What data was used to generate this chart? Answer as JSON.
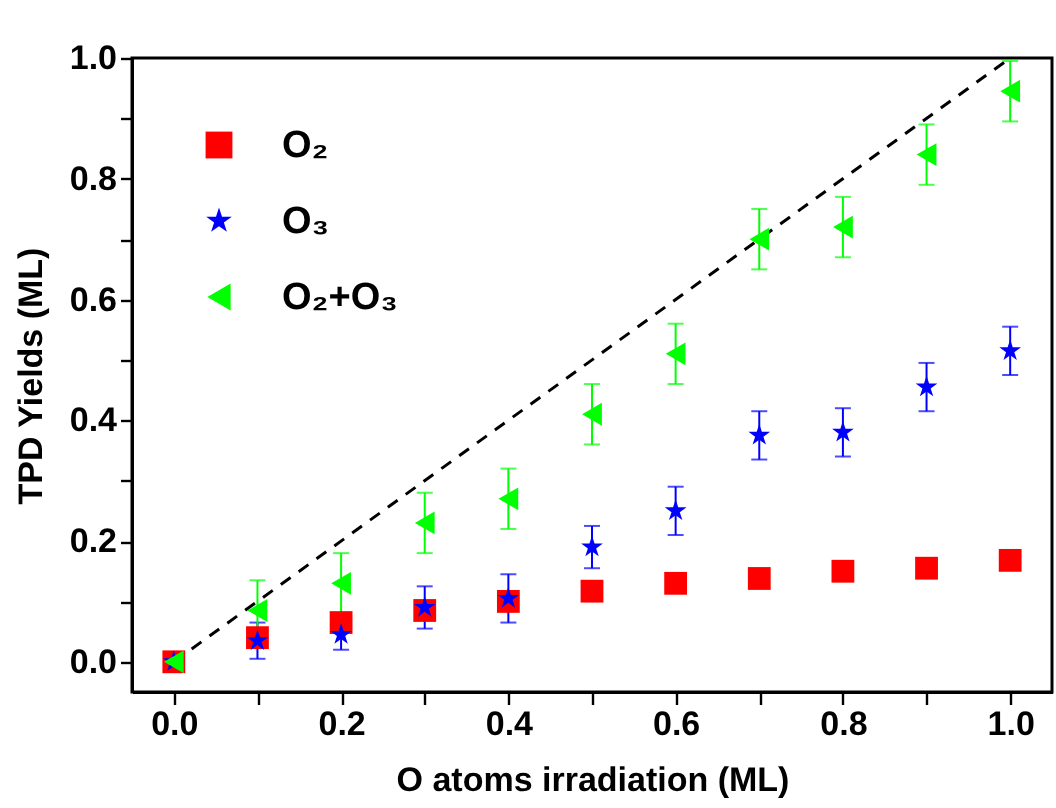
{
  "chart_data": {
    "type": "scatter",
    "xlabel": "O atoms irradiation (ML)",
    "ylabel": "TPD Yields (ML)",
    "x": [
      0,
      0.1,
      0.2,
      0.3,
      0.4,
      0.5,
      0.6,
      0.7,
      0.8,
      0.9,
      1.0
    ],
    "series": [
      {
        "name": "O₂",
        "color": "#ff0000",
        "marker": "square",
        "values": [
          0,
          0.04,
          0.065,
          0.085,
          0.1,
          0.117,
          0.13,
          0.138,
          0.15,
          0.155,
          0.168
        ]
      },
      {
        "name": "O₃",
        "color": "#0000ff",
        "marker": "star",
        "values": [
          0,
          0.035,
          0.045,
          0.09,
          0.105,
          0.19,
          0.25,
          0.375,
          0.38,
          0.455,
          0.515
        ],
        "errors": [
          null,
          0.03,
          0.025,
          0.035,
          0.04,
          0.035,
          0.04,
          0.04,
          0.04,
          0.04,
          0.04
        ]
      },
      {
        "name": "O₂+O₃",
        "color": "#00ff00",
        "marker": "triangle",
        "values": [
          0,
          0.085,
          0.13,
          0.23,
          0.27,
          0.41,
          0.51,
          0.7,
          0.72,
          0.84,
          0.945
        ],
        "errors": [
          null,
          0.05,
          0.05,
          0.05,
          0.05,
          0.05,
          0.05,
          0.05,
          0.05,
          0.05,
          0.05
        ]
      },
      {
        "type": "line",
        "color": "#000000",
        "line_style": "dashed",
        "marker": "none",
        "x": [
          0,
          1.0
        ],
        "values": [
          0,
          1.0
        ]
      }
    ],
    "xlim": [
      -0.05,
      1.05
    ],
    "ylim": [
      -0.05,
      1.0
    ],
    "xticks": [
      {
        "value": 0,
        "label": "0.0"
      },
      {
        "value": 0.1,
        "label": null
      },
      {
        "value": 0.2,
        "label": "0.2"
      },
      {
        "value": 0.3,
        "label": null
      },
      {
        "value": 0.4,
        "label": "0.4"
      },
      {
        "value": 0.5,
        "label": null
      },
      {
        "value": 0.6,
        "label": "0.6"
      },
      {
        "value": 0.7,
        "label": null
      },
      {
        "value": 0.8,
        "label": "0.8"
      },
      {
        "value": 0.9,
        "label": null
      },
      {
        "value": 1.0,
        "label": "1.0"
      }
    ],
    "yticks": [
      {
        "value": 0,
        "label": "0.0"
      },
      {
        "value": 0.1,
        "label": null
      },
      {
        "value": 0.2,
        "label": "0.2"
      },
      {
        "value": 0.3,
        "label": null
      },
      {
        "value": 0.4,
        "label": "0.4"
      },
      {
        "value": 0.5,
        "label": null
      },
      {
        "value": 0.6,
        "label": "0.6"
      },
      {
        "value": 0.7,
        "label": null
      },
      {
        "value": 0.8,
        "label": "0.8"
      },
      {
        "value": 0.9,
        "label": null
      },
      {
        "value": 1.0,
        "label": "1.0"
      }
    ],
    "grid": false,
    "legend": "top left"
  }
}
